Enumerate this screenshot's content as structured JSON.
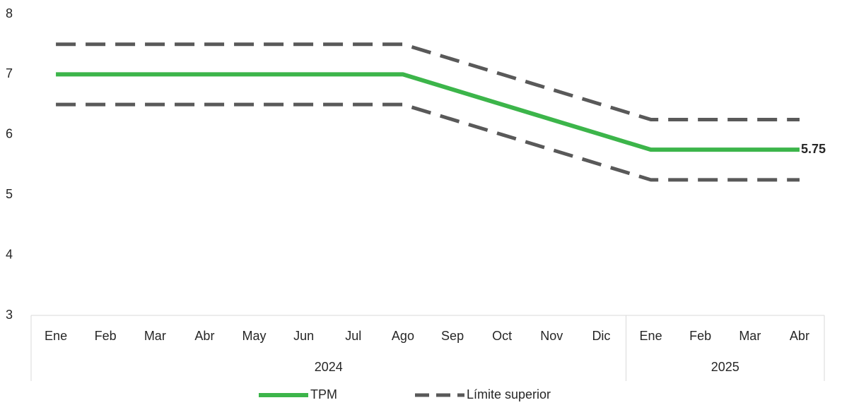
{
  "chart_data": {
    "type": "line",
    "categories": [
      "Ene",
      "Feb",
      "Mar",
      "Abr",
      "May",
      "Jun",
      "Jul",
      "Ago",
      "Sep",
      "Oct",
      "Nov",
      "Dic",
      "Ene",
      "Feb",
      "Mar",
      "Abr"
    ],
    "category_groups": [
      {
        "label": "2024",
        "span": 12
      },
      {
        "label": "2025",
        "span": 4
      }
    ],
    "series": [
      {
        "name": "TPM",
        "color": "#3cb54a",
        "values": [
          7,
          7,
          7,
          7,
          7,
          7,
          7,
          7,
          6.75,
          6.5,
          6.25,
          6,
          5.75,
          5.75,
          5.75,
          5.75
        ],
        "label_last": true
      },
      {
        "name": "Límite superior",
        "color": "#595959",
        "dashed": true,
        "values": [
          7.5,
          7.5,
          7.5,
          7.5,
          7.5,
          7.5,
          7.5,
          7.5,
          7.25,
          7,
          6.75,
          6.5,
          6.25,
          6.25,
          6.25,
          6.25
        ]
      },
      {
        "color": "#595959",
        "dashed": true,
        "values": [
          6.5,
          6.5,
          6.5,
          6.5,
          6.5,
          6.5,
          6.5,
          6.5,
          6.25,
          6,
          5.75,
          5.5,
          5.25,
          5.25,
          5.25,
          5.25
        ]
      }
    ],
    "ylim": [
      3,
      8
    ],
    "yticks": [
      3,
      4,
      5,
      6,
      7,
      8
    ],
    "grid": false,
    "legend": "bottom"
  }
}
